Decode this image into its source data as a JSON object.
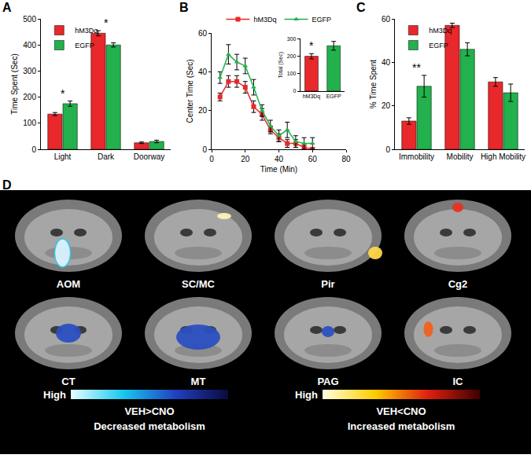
{
  "chart_data": [
    {
      "panel": "A",
      "type": "bar",
      "y_label": "Time Spent (Sec)",
      "categories": [
        "Light",
        "Dark",
        "Doorway"
      ],
      "series": [
        {
          "name": "hM3Dq",
          "color": "#e8282b",
          "values": [
            135,
            445,
            25
          ],
          "errors": [
            6,
            10,
            3
          ]
        },
        {
          "name": "EGFP",
          "color": "#22b14c",
          "values": [
            175,
            400,
            30
          ],
          "errors": [
            10,
            8,
            5
          ]
        }
      ],
      "ylim": [
        0,
        500
      ],
      "yticks": [
        0,
        100,
        200,
        300,
        400,
        500
      ],
      "grid": false,
      "legend": "top left",
      "annotations": [
        {
          "category": "Light",
          "text": "*"
        },
        {
          "category": "Dark",
          "text": "*"
        }
      ]
    },
    {
      "panel": "B",
      "type": "line",
      "x_label": "Time (Min)",
      "y_label": "Center Time (Sec)",
      "x": [
        5,
        10,
        15,
        20,
        25,
        30,
        35,
        40,
        45,
        50,
        55,
        60
      ],
      "series": [
        {
          "name": "hM3Dq",
          "color": "#e8282b",
          "marker": "square",
          "values": [
            27,
            35,
            35,
            32,
            22,
            18,
            10,
            6,
            3,
            3,
            1,
            0
          ],
          "errors": [
            2,
            3,
            3,
            3,
            3,
            3,
            2,
            2,
            2,
            2,
            1,
            1
          ]
        },
        {
          "name": "EGFP",
          "color": "#22b14c",
          "marker": "triangle-up",
          "values": [
            37,
            49,
            45,
            43,
            32,
            20,
            12,
            7,
            10,
            4,
            3,
            3
          ],
          "errors": [
            3,
            5,
            4,
            4,
            4,
            3,
            3,
            3,
            4,
            3,
            3,
            3
          ]
        }
      ],
      "xlim": [
        0,
        80
      ],
      "xticks": [
        0,
        20,
        40,
        60,
        80
      ],
      "ylim": [
        0,
        60
      ],
      "yticks": [
        0,
        20,
        40,
        60
      ],
      "grid": false,
      "legend": "top",
      "inset": {
        "type": "bar",
        "y_label": "Total (Sec)",
        "categories": [
          "hM3Dq",
          "EGFP"
        ],
        "values": [
          200,
          260
        ],
        "errors": [
          15,
          25
        ],
        "colors": [
          "#e8282b",
          "#22b14c"
        ],
        "ylim": [
          0,
          300
        ],
        "yticks": [
          0,
          100,
          200,
          300
        ],
        "annotations": [
          {
            "category": "hM3Dq",
            "text": "*"
          }
        ]
      }
    },
    {
      "panel": "C",
      "type": "bar",
      "y_label": "% Time Spent",
      "categories": [
        "Immobility",
        "Mobility",
        "High Mobility"
      ],
      "series": [
        {
          "name": "hM3Dq",
          "color": "#e8282b",
          "values": [
            13,
            57,
            31
          ],
          "errors": [
            1.5,
            1,
            2
          ]
        },
        {
          "name": "EGFP",
          "color": "#22b14c",
          "values": [
            29,
            46,
            26
          ],
          "errors": [
            5,
            3,
            4
          ]
        }
      ],
      "ylim": [
        0,
        60
      ],
      "yticks": [
        0,
        20,
        40,
        60
      ],
      "grid": false,
      "legend": "top left",
      "annotations": [
        {
          "category": "Immobility",
          "text": "**"
        }
      ]
    }
  ],
  "panel_d": {
    "panel": "D",
    "regions": [
      {
        "label": "AOM",
        "color": "#d8f4ff"
      },
      {
        "label": "SC/MC",
        "color": "#fff0b8"
      },
      {
        "label": "Pir",
        "color": "#ffd84a"
      },
      {
        "label": "Cg2",
        "color": "#e8321e"
      },
      {
        "label": "CT",
        "color": "#2a4fc0"
      },
      {
        "label": "MT",
        "color": "#2a4fc0"
      },
      {
        "label": "PAG",
        "color": "#2a4fc0"
      },
      {
        "label": "IC",
        "color": "#f06020"
      }
    ],
    "scales": [
      {
        "end_label": "High",
        "title": "VEH>CNO",
        "caption": "Decreased metabolism",
        "colors": [
          "#e6ffff",
          "#18c8f0",
          "#2040c0",
          "#0a0a40"
        ]
      },
      {
        "end_label": "High",
        "title": "VEH<CNO",
        "caption": "Increased metabolism",
        "colors": [
          "#ffffe0",
          "#ffcc00",
          "#e02010",
          "#400000"
        ]
      }
    ]
  }
}
